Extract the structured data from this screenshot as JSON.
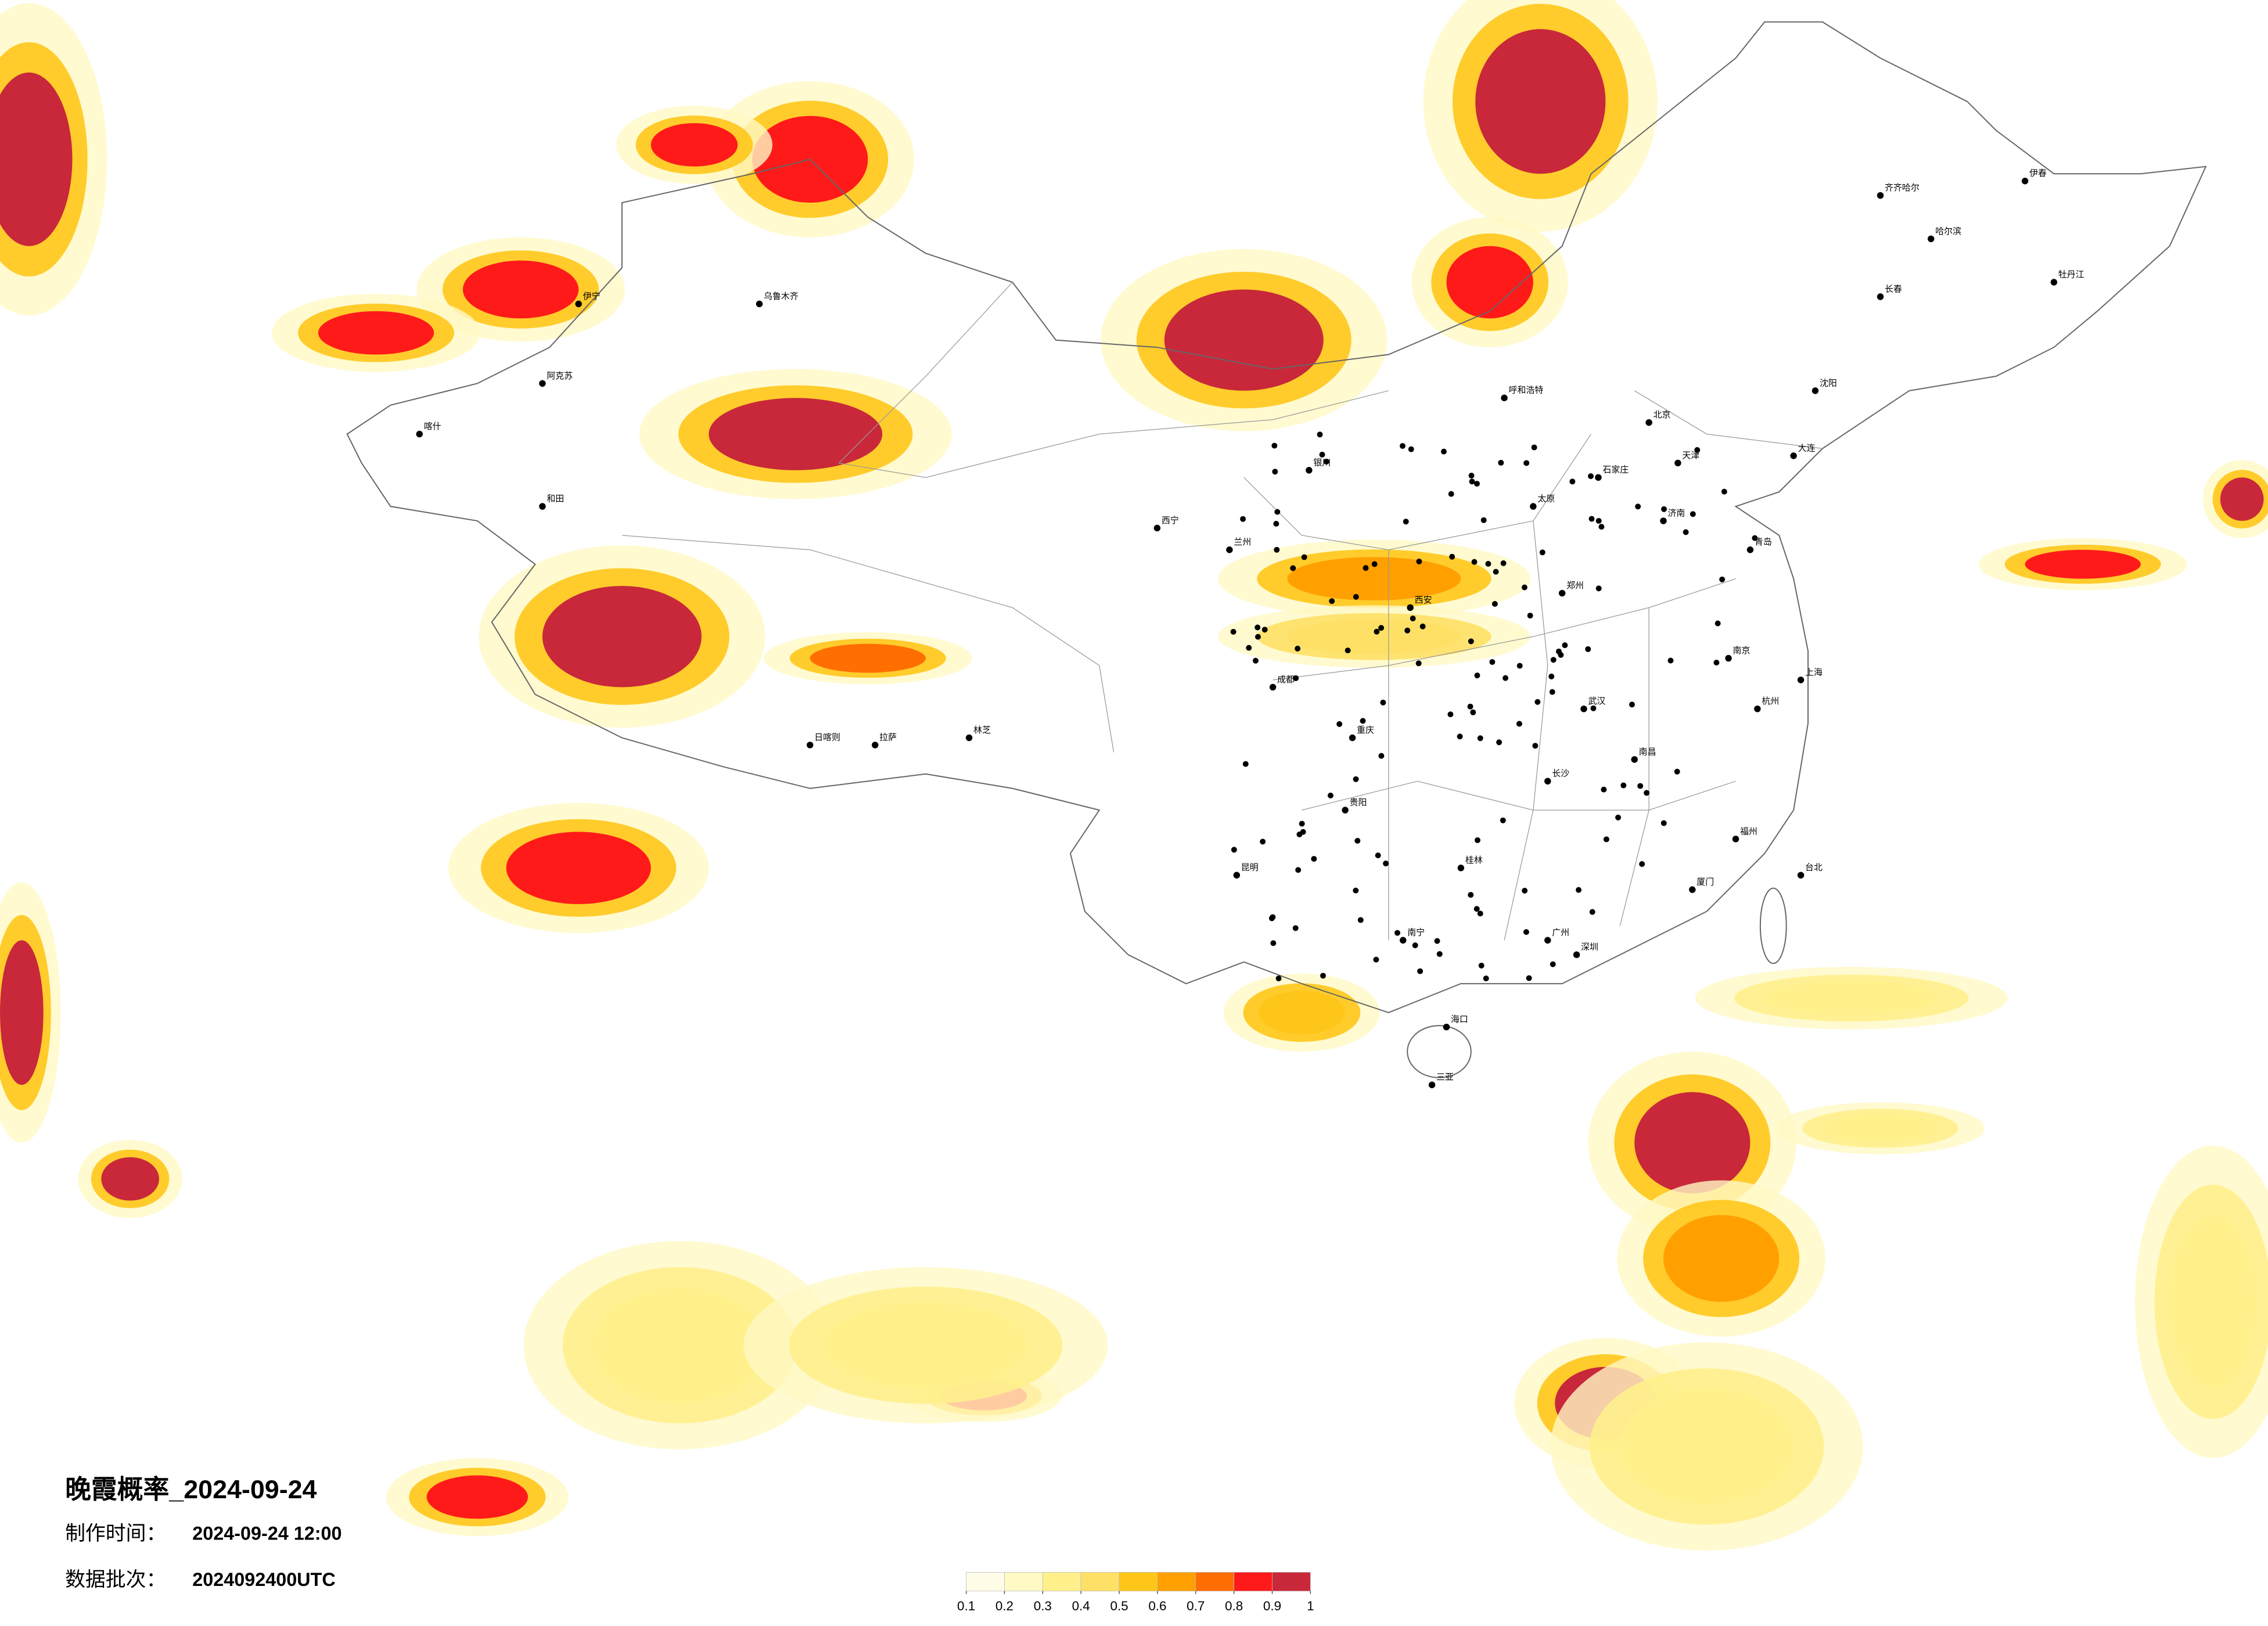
{
  "title": "晚霞概率_2024-09-24",
  "made_time_label": "制作时间：",
  "made_time": "2024-09-24 12:00",
  "batch_label": "数据批次：",
  "batch": "2024092400UTC",
  "colorbar": {
    "colors": [
      "#fffce8",
      "#fff9c4",
      "#fff08c",
      "#ffe066",
      "#ffc61a",
      "#ffa000",
      "#ff6e00",
      "#ff1a1a",
      "#c8283a"
    ],
    "ticks": [
      0.1,
      0.2,
      0.3,
      0.4,
      0.5,
      0.6,
      0.7,
      0.8,
      0.9,
      1
    ]
  },
  "cities": [
    "北京",
    "天津",
    "上海",
    "广州",
    "深圳",
    "重庆",
    "成都",
    "武汉",
    "西安",
    "郑州",
    "济南",
    "南京",
    "杭州",
    "长沙",
    "南昌",
    "福州",
    "昆明",
    "贵阳",
    "南宁",
    "兰州",
    "西宁",
    "银川",
    "呼和浩特",
    "太原",
    "石家庄",
    "沈阳",
    "长春",
    "哈尔滨",
    "乌鲁木齐",
    "拉萨",
    "海口",
    "三亚",
    "台北",
    "喀什",
    "和田",
    "伊宁",
    "阿克苏",
    "日喀则",
    "林芝",
    "齐齐哈尔",
    "伊春",
    "牡丹江",
    "大连",
    "青岛",
    "厦门",
    "桂林"
  ]
}
